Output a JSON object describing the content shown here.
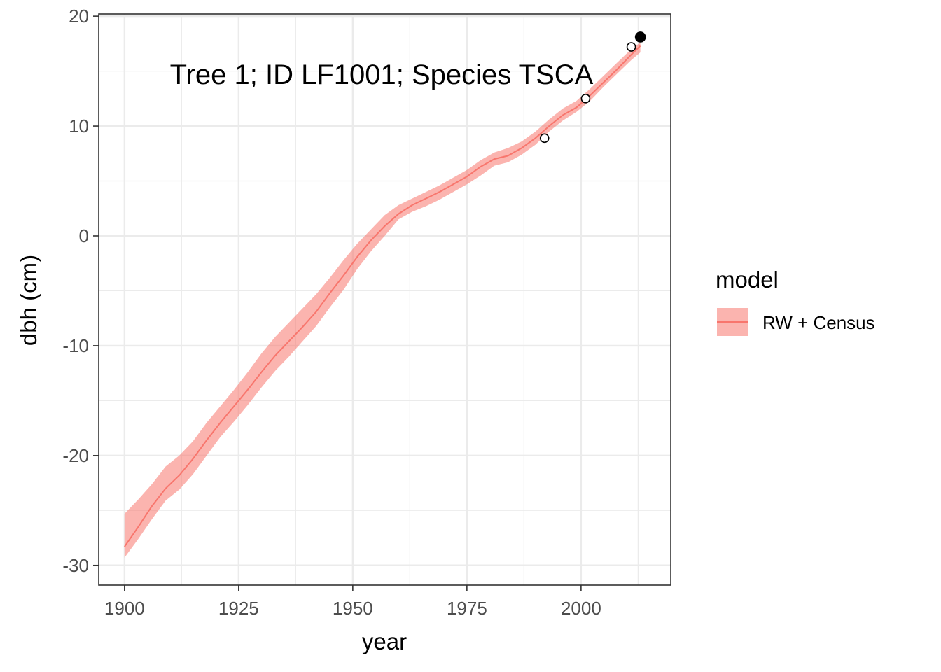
{
  "chart_data": {
    "type": "line",
    "annotation": "Tree 1; ID LF1001; Species TSCA",
    "xlabel": "year",
    "ylabel": "dbh (cm)",
    "xlim": [
      1894.35,
      2019.65
    ],
    "ylim": [
      -31.8,
      20.2
    ],
    "x_ticks": [
      1900,
      1925,
      1950,
      1975,
      2000
    ],
    "x_tick_labels": [
      "1900",
      "1925",
      "1950",
      "1975",
      "2000"
    ],
    "y_ticks": [
      -30,
      -20,
      -10,
      0,
      10,
      20
    ],
    "y_tick_labels": [
      "-30",
      "-20",
      "-10",
      "0",
      "10",
      "20"
    ],
    "grid": true,
    "legend": {
      "title": "model",
      "position": "right",
      "entries": [
        {
          "label": "RW + Census",
          "line_color": "#F8766D",
          "fill_color": "#F8766D"
        }
      ]
    },
    "series": [
      {
        "name": "RW + Census",
        "color": "#F8766D",
        "x": [
          1900,
          1903,
          1906,
          1909,
          1912,
          1915,
          1918,
          1921,
          1924,
          1927,
          1930,
          1933,
          1936,
          1939,
          1942,
          1945,
          1948,
          1951,
          1954,
          1957,
          1960,
          1963,
          1966,
          1969,
          1972,
          1975,
          1978,
          1981,
          1984,
          1987,
          1990,
          1993,
          1996,
          1999,
          2002,
          2005,
          2008,
          2011,
          2013
        ],
        "y": [
          -28.3,
          -26.5,
          -24.6,
          -23.0,
          -21.8,
          -20.3,
          -18.6,
          -17.0,
          -15.5,
          -14.0,
          -12.4,
          -10.9,
          -9.6,
          -8.3,
          -6.9,
          -5.2,
          -3.6,
          -1.9,
          -0.4,
          0.9,
          2.0,
          2.8,
          3.4,
          4.0,
          4.7,
          5.4,
          6.3,
          7.0,
          7.3,
          8.0,
          8.9,
          10.0,
          11.0,
          11.7,
          12.8,
          14.0,
          15.2,
          16.5,
          17.3
        ],
        "lower": [
          -29.3,
          -27.6,
          -25.8,
          -24.1,
          -23.1,
          -21.7,
          -20.0,
          -18.3,
          -16.9,
          -15.4,
          -13.8,
          -12.3,
          -11.0,
          -9.6,
          -8.2,
          -6.5,
          -4.9,
          -3.0,
          -1.4,
          0.0,
          1.5,
          2.2,
          2.7,
          3.3,
          4.0,
          4.7,
          5.5,
          6.4,
          6.7,
          7.4,
          8.3,
          9.5,
          10.5,
          11.3,
          12.3,
          13.6,
          14.8,
          16.0,
          16.7
        ],
        "upper": [
          -25.3,
          -24.0,
          -22.6,
          -21.0,
          -20.0,
          -18.7,
          -17.0,
          -15.5,
          -14.0,
          -12.4,
          -10.7,
          -9.2,
          -7.9,
          -6.6,
          -5.3,
          -3.8,
          -2.2,
          -0.7,
          0.6,
          1.9,
          2.8,
          3.4,
          4.0,
          4.6,
          5.3,
          6.0,
          6.9,
          7.6,
          8.0,
          8.6,
          9.5,
          10.6,
          11.6,
          12.3,
          13.4,
          14.6,
          15.8,
          17.0,
          17.6
        ]
      }
    ],
    "census_points": [
      {
        "x": 1992,
        "y": 8.9,
        "style": "open"
      },
      {
        "x": 2001,
        "y": 12.5,
        "style": "open"
      },
      {
        "x": 2011,
        "y": 17.2,
        "style": "open"
      },
      {
        "x": 2013,
        "y": 18.1,
        "style": "filled"
      }
    ]
  }
}
